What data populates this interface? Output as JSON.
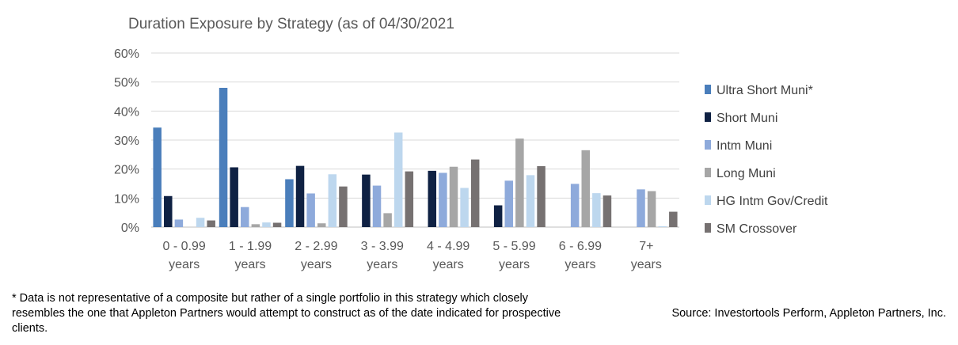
{
  "chart_data": {
    "type": "bar",
    "title": "Duration Exposure by Strategy (as of 04/30/2021",
    "categories": [
      [
        "0 - 0.99",
        "years"
      ],
      [
        "1 - 1.99",
        "years"
      ],
      [
        "2 - 2.99",
        "years"
      ],
      [
        "3 - 3.99",
        "years"
      ],
      [
        "4 - 4.99",
        "years"
      ],
      [
        "5 - 5.99",
        "years"
      ],
      [
        "6 - 6.99",
        "years"
      ],
      [
        "7+",
        "years"
      ]
    ],
    "series": [
      {
        "name": "Ultra Short Muni*",
        "color": "#4a7ebb",
        "values": [
          34.3,
          48.0,
          16.5,
          0,
          0,
          0,
          0,
          0
        ]
      },
      {
        "name": "Short Muni",
        "color": "#0f2143",
        "values": [
          10.7,
          20.6,
          21.1,
          18.1,
          19.4,
          7.5,
          0,
          0
        ]
      },
      {
        "name": "Intm Muni",
        "color": "#8eaadb",
        "values": [
          2.6,
          6.9,
          11.6,
          14.3,
          18.7,
          16.0,
          14.9,
          13.0
        ]
      },
      {
        "name": "Long Muni",
        "color": "#a6a6a6",
        "values": [
          0,
          1.0,
          1.3,
          4.8,
          20.8,
          30.5,
          26.5,
          12.4
        ]
      },
      {
        "name": "HG Intm Gov/Credit",
        "color": "#bdd7ee",
        "values": [
          3.2,
          1.6,
          18.2,
          32.6,
          13.5,
          17.9,
          11.7,
          0.3
        ]
      },
      {
        "name": "SM Crossover",
        "color": "#767171",
        "values": [
          2.3,
          1.5,
          14.0,
          19.2,
          23.3,
          21.0,
          10.9,
          5.3
        ]
      }
    ],
    "y_ticks": [
      "0%",
      "10%",
      "20%",
      "30%",
      "40%",
      "50%",
      "60%"
    ],
    "ylim": [
      0,
      60
    ],
    "grid": true,
    "legend_position": "right"
  },
  "footnote": "* Data is not representative of a composite but rather of a single portfolio in this strategy which closely resembles the one that Appleton Partners would attempt to construct as of the date indicated for prospective clients.",
  "source": "Source: Investortools Perform, Appleton Partners, Inc."
}
